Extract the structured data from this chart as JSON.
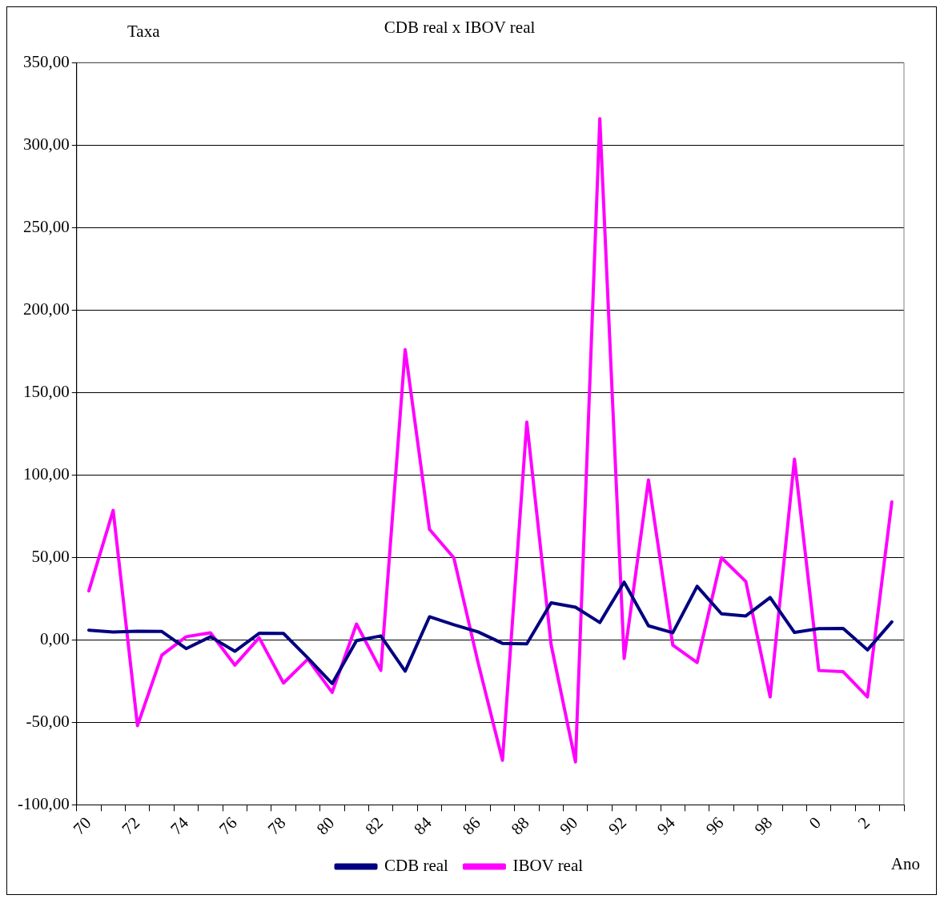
{
  "chart_data": {
    "type": "line",
    "title": "CDB real x IBOV real",
    "xlabel": "Ano",
    "ylabel": "Taxa",
    "categories": [
      "70",
      null,
      "72",
      null,
      "74",
      null,
      "76",
      null,
      "78",
      null,
      "80",
      null,
      "82",
      null,
      "84",
      null,
      "86",
      null,
      "88",
      null,
      "90",
      null,
      "92",
      null,
      "94",
      null,
      "96",
      null,
      "98",
      null,
      "0",
      null,
      "2",
      null
    ],
    "series": [
      {
        "name": "CDB real",
        "color": "#000080",
        "values": [
          5.9,
          4.8,
          5.3,
          5.1,
          -5.3,
          1.9,
          -6.9,
          4.0,
          3.9,
          -11,
          -26.5,
          -0.5,
          2.4,
          -19,
          14,
          9.2,
          4.8,
          -2.1,
          -2.4,
          22.5,
          19.8,
          10.5,
          35,
          8.5,
          4.3,
          32.5,
          15.8,
          14.5,
          25.7,
          4.5,
          6.8,
          6.9,
          -6.1,
          10.9
        ]
      },
      {
        "name": "IBOV real",
        "color": "#ff00ff",
        "values": [
          29.7,
          78.5,
          -52,
          -9.3,
          1.9,
          4.3,
          -15.3,
          1.3,
          -26.2,
          -11.7,
          -31.8,
          9.6,
          -18.5,
          176,
          67,
          49.8,
          -14,
          -73,
          132,
          -3,
          -74,
          316,
          -11.3,
          97,
          -3.2,
          -13.7,
          49.8,
          35.4,
          -34.6,
          109.6,
          -18.6,
          -19.3,
          -34.6,
          83.6
        ]
      }
    ],
    "ylim": [
      -100,
      350
    ],
    "yticks": [
      {
        "value": -100,
        "label": "-100,00"
      },
      {
        "value": -50,
        "label": "-50,00"
      },
      {
        "value": 0,
        "label": "0,00"
      },
      {
        "value": 50,
        "label": "50,00"
      },
      {
        "value": 100,
        "label": "100,00"
      },
      {
        "value": 150,
        "label": "150,00"
      },
      {
        "value": 200,
        "label": "200,00"
      },
      {
        "value": 250,
        "label": "250,00"
      },
      {
        "value": 300,
        "label": "300,00"
      },
      {
        "value": 350,
        "label": "350,00"
      }
    ],
    "grid": "y",
    "legend": "bottom",
    "marker": "none",
    "line_style": "solid"
  }
}
